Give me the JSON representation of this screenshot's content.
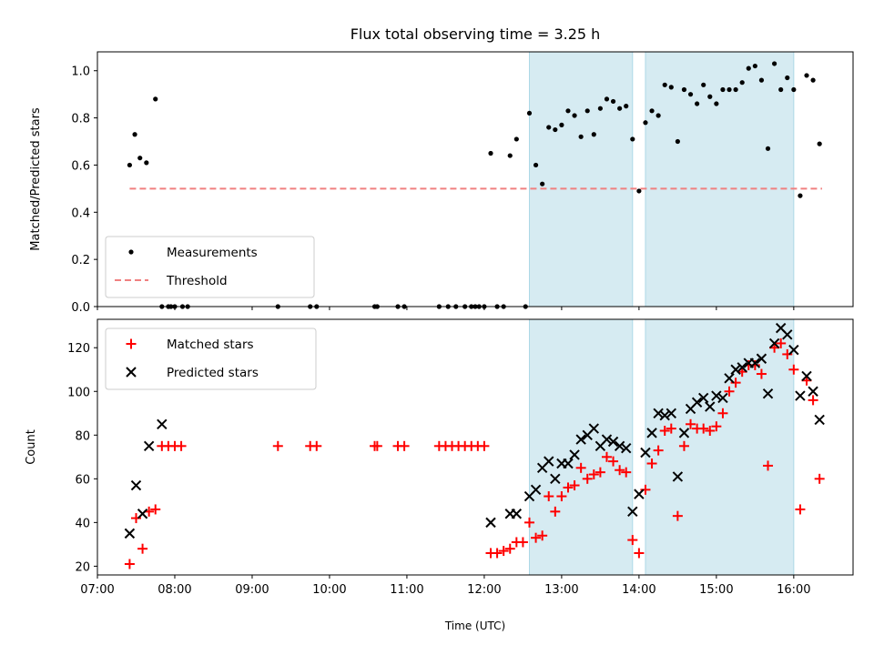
{
  "colors": {
    "band": "#add8e6",
    "threshold": "#f08080",
    "matched": "#ff0000",
    "predicted": "#000000",
    "measurement": "#000000"
  },
  "chart_data": [
    {
      "type": "scatter",
      "title": "Flux total observing time = 3.25 h",
      "xlabel": "",
      "ylabel": "Matched/Predicted stars",
      "xlim": [
        "07:00",
        "16:46"
      ],
      "ylim": [
        0,
        1.08
      ],
      "yticks": [
        "0.0",
        "0.2",
        "0.4",
        "0.6",
        "0.8",
        "1.0"
      ],
      "legend": {
        "position": "lower-left",
        "entries": [
          "Measurements",
          "Threshold"
        ]
      },
      "shaded_intervals": [
        [
          "12:35",
          "13:55"
        ],
        [
          "14:05",
          "16:00"
        ]
      ],
      "threshold": {
        "name": "Threshold",
        "y": 0.5,
        "x_start": "07:25",
        "x_end": "16:22"
      },
      "series": [
        {
          "name": "Measurements",
          "x": [
            "07:25",
            "07:29",
            "07:33",
            "07:38",
            "07:45",
            "07:50",
            "07:55",
            "07:57",
            "08:00",
            "08:06",
            "08:10",
            "09:20",
            "09:45",
            "09:50",
            "10:35",
            "10:37",
            "10:53",
            "10:58",
            "11:25",
            "11:32",
            "11:38",
            "11:45",
            "11:50",
            "11:53",
            "11:56",
            "12:00",
            "12:05",
            "12:10",
            "12:15",
            "12:20",
            "12:25",
            "12:32",
            "12:35",
            "12:40",
            "12:45",
            "12:50",
            "12:55",
            "13:00",
            "13:05",
            "13:10",
            "13:15",
            "13:20",
            "13:25",
            "13:30",
            "13:35",
            "13:40",
            "13:45",
            "13:50",
            "13:55",
            "14:00",
            "14:05",
            "14:10",
            "14:15",
            "14:20",
            "14:25",
            "14:30",
            "14:35",
            "14:40",
            "14:45",
            "14:50",
            "14:55",
            "15:00",
            "15:05",
            "15:10",
            "15:15",
            "15:20",
            "15:25",
            "15:30",
            "15:35",
            "15:40",
            "15:45",
            "15:50",
            "15:55",
            "16:00",
            "16:05",
            "16:10",
            "16:15",
            "16:20"
          ],
          "y": [
            0.6,
            0.73,
            0.63,
            0.61,
            0.88,
            0.0,
            0.0,
            0.0,
            0.0,
            0.0,
            0.0,
            0.0,
            0.0,
            0.0,
            0.0,
            0.0,
            0.0,
            0.0,
            0.0,
            0.0,
            0.0,
            0.0,
            0.0,
            0.0,
            0.0,
            0.0,
            0.65,
            0.0,
            0.0,
            0.64,
            0.71,
            0.0,
            0.82,
            0.6,
            0.52,
            0.76,
            0.75,
            0.77,
            0.83,
            0.81,
            0.72,
            0.83,
            0.73,
            0.84,
            0.88,
            0.87,
            0.84,
            0.85,
            0.71,
            0.49,
            0.78,
            0.83,
            0.81,
            0.94,
            0.93,
            0.7,
            0.92,
            0.9,
            0.86,
            0.94,
            0.89,
            0.86,
            0.92,
            0.92,
            0.92,
            0.95,
            1.01,
            1.02,
            0.96,
            0.67,
            1.03,
            0.92,
            0.97,
            0.92,
            0.47,
            0.98,
            0.96,
            0.69
          ]
        }
      ]
    },
    {
      "type": "scatter",
      "title": "",
      "xlabel": "Time (UTC)",
      "ylabel": "Count",
      "xlim": [
        "07:00",
        "16:46"
      ],
      "ylim": [
        16,
        133
      ],
      "yticks": [
        "20",
        "40",
        "60",
        "80",
        "100",
        "120"
      ],
      "xticks": [
        "07:00",
        "08:00",
        "09:00",
        "10:00",
        "11:00",
        "12:00",
        "13:00",
        "14:00",
        "15:00",
        "16:00"
      ],
      "legend": {
        "position": "top-left",
        "entries": [
          "Matched stars",
          "Predicted stars"
        ]
      },
      "shaded_intervals": [
        [
          "12:35",
          "13:55"
        ],
        [
          "14:05",
          "16:00"
        ]
      ],
      "series": [
        {
          "name": "Matched stars",
          "marker": "+",
          "x": [
            "07:25",
            "07:30",
            "07:35",
            "07:40",
            "07:45",
            "07:50",
            "07:55",
            "08:00",
            "08:05",
            "09:20",
            "09:45",
            "09:50",
            "10:35",
            "10:37",
            "10:53",
            "10:58",
            "11:25",
            "11:30",
            "11:35",
            "11:40",
            "11:45",
            "11:50",
            "11:55",
            "12:00",
            "12:05",
            "12:10",
            "12:15",
            "12:20",
            "12:25",
            "12:30",
            "12:35",
            "12:40",
            "12:45",
            "12:50",
            "12:55",
            "13:00",
            "13:05",
            "13:10",
            "13:15",
            "13:20",
            "13:25",
            "13:30",
            "13:35",
            "13:40",
            "13:45",
            "13:50",
            "13:55",
            "14:00",
            "14:05",
            "14:10",
            "14:15",
            "14:20",
            "14:25",
            "14:30",
            "14:35",
            "14:40",
            "14:45",
            "14:50",
            "14:55",
            "15:00",
            "15:05",
            "15:10",
            "15:15",
            "15:20",
            "15:25",
            "15:30",
            "15:35",
            "15:40",
            "15:45",
            "15:50",
            "15:55",
            "16:00",
            "16:05",
            "16:10",
            "16:15",
            "16:20"
          ],
          "y": [
            21,
            42,
            28,
            45,
            46,
            75,
            75,
            75,
            75,
            75,
            75,
            75,
            75,
            75,
            75,
            75,
            75,
            75,
            75,
            75,
            75,
            75,
            75,
            75,
            26,
            26,
            27,
            28,
            31,
            31,
            40,
            33,
            34,
            52,
            45,
            52,
            56,
            57,
            65,
            60,
            62,
            63,
            70,
            68,
            64,
            63,
            32,
            26,
            55,
            67,
            73,
            82,
            83,
            43,
            75,
            85,
            83,
            83,
            82,
            84,
            90,
            100,
            104,
            109,
            112,
            112,
            108,
            66,
            120,
            122,
            117,
            110,
            46,
            105,
            96,
            60
          ]
        },
        {
          "name": "Predicted stars",
          "marker": "x",
          "x": [
            "07:25",
            "07:30",
            "07:35",
            "07:40",
            "07:50",
            "12:05",
            "12:20",
            "12:25",
            "12:35",
            "12:40",
            "12:45",
            "12:50",
            "12:55",
            "13:00",
            "13:05",
            "13:10",
            "13:15",
            "13:20",
            "13:25",
            "13:30",
            "13:35",
            "13:40",
            "13:45",
            "13:50",
            "13:55",
            "14:00",
            "14:05",
            "14:10",
            "14:15",
            "14:20",
            "14:25",
            "14:30",
            "14:35",
            "14:40",
            "14:45",
            "14:50",
            "14:55",
            "15:00",
            "15:05",
            "15:10",
            "15:15",
            "15:20",
            "15:25",
            "15:30",
            "15:35",
            "15:40",
            "15:45",
            "15:50",
            "15:55",
            "16:00",
            "16:05",
            "16:10",
            "16:15",
            "16:20"
          ],
          "y": [
            35,
            57,
            44,
            75,
            85,
            40,
            44,
            44,
            52,
            55,
            65,
            68,
            60,
            67,
            67,
            71,
            78,
            80,
            83,
            75,
            78,
            77,
            75,
            74,
            45,
            53,
            72,
            81,
            90,
            89,
            90,
            61,
            81,
            92,
            95,
            97,
            93,
            98,
            97,
            106,
            110,
            111,
            113,
            113,
            115,
            99,
            122,
            129,
            126,
            119,
            98,
            107,
            100,
            87
          ]
        }
      ]
    }
  ]
}
